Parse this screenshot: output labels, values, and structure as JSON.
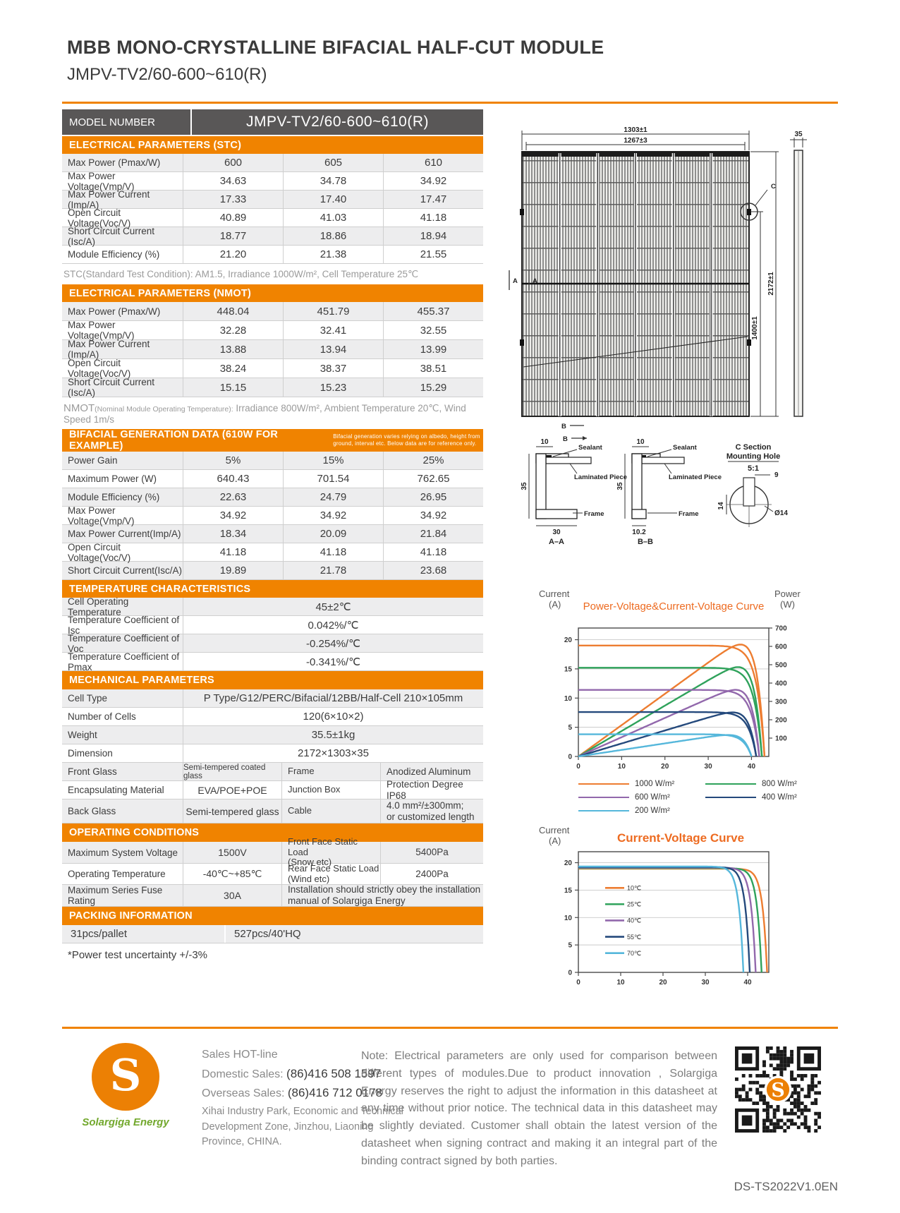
{
  "page": {
    "title": "MBB MONO-CRYSTALLINE BIFACIAL HALF-CUT MODULE",
    "subtitle": "JMPV-TV2/60-600~610(R)",
    "doc_code": "DS-TS2022V1.0EN"
  },
  "model_row": {
    "label": "MODEL NUMBER",
    "value": "JMPV-TV2/60-600~610(R)"
  },
  "stc": {
    "header": "ELECTRICAL PARAMETERS  (STC)",
    "rows": [
      {
        "label": "Max Power (Pmax/W)",
        "values": [
          "600",
          "605",
          "610"
        ]
      },
      {
        "label": "Max Power Voltage(Vmp/V)",
        "values": [
          "34.63",
          "34.78",
          "34.92"
        ]
      },
      {
        "label": "Max Power Current (Imp/A)",
        "values": [
          "17.33",
          "17.40",
          "17.47"
        ]
      },
      {
        "label": "Open Circuit Voltage(Voc/V)",
        "values": [
          "40.89",
          "41.03",
          "41.18"
        ]
      },
      {
        "label": "Short Circuit Current (Isc/A)",
        "values": [
          "18.77",
          "18.86",
          "18.94"
        ]
      },
      {
        "label": "Module Efficiency (%)",
        "values": [
          "21.20",
          "21.38",
          "21.55"
        ]
      }
    ],
    "footnote": "STC(Standard Test Condition): AM1.5, Irradiance 1000W/m², Cell Temperature 25℃"
  },
  "nmot": {
    "header": "ELECTRICAL PARAMETERS  (NMOT)",
    "rows": [
      {
        "label": "Max Power (Pmax/W)",
        "values": [
          "448.04",
          "451.79",
          "455.37"
        ]
      },
      {
        "label": "Max Power Voltage(Vmp/V)",
        "values": [
          "32.28",
          "32.41",
          "32.55"
        ]
      },
      {
        "label": "Max Power Current (Imp/A)",
        "values": [
          "13.88",
          "13.94",
          "13.99"
        ]
      },
      {
        "label": "Open Circuit Voltage(Voc/V)",
        "values": [
          "38.24",
          "38.37",
          "38.51"
        ]
      },
      {
        "label": "Short Circuit Current (Isc/A)",
        "values": [
          "15.15",
          "15.23",
          "15.29"
        ]
      }
    ],
    "footnote_prefix": "NMOT",
    "footnote_small": "(Nominal Module Operating Temperature):",
    "footnote_rest": " Irradiance 800W/m², Ambient Temperature 20℃, Wind Speed 1m/s"
  },
  "bifacial": {
    "header": "BIFACIAL GENERATION DATA (610W FOR EXAMPLE)",
    "header_note": "Bifacial generation varies relying on albedo, height from ground, interval etc. Below data are for reference only.",
    "rows": [
      {
        "label": "Power Gain",
        "values": [
          "5%",
          "15%",
          "25%"
        ]
      },
      {
        "label": "Maximum Power (W)",
        "values": [
          "640.43",
          "701.54",
          "762.65"
        ]
      },
      {
        "label": "Module Efficiency (%)",
        "values": [
          "22.63",
          "24.79",
          "26.95"
        ]
      },
      {
        "label": "Max Power Voltage(Vmp/V)",
        "values": [
          "34.92",
          "34.92",
          "34.92"
        ]
      },
      {
        "label": "Max Power Current(Imp/A)",
        "values": [
          "18.34",
          "20.09",
          "21.84"
        ]
      },
      {
        "label": "Open Circuit Voltage(Voc/V)",
        "values": [
          "41.18",
          "41.18",
          "41.18"
        ]
      },
      {
        "label": "Short Circuit Current(Isc/A)",
        "values": [
          "19.89",
          "21.78",
          "23.68"
        ]
      }
    ]
  },
  "temperature": {
    "header": "TEMPERATURE CHARACTERISTICS",
    "rows": [
      {
        "label": "Cell Operating Temperature",
        "value": "45±2℃"
      },
      {
        "label": "Temperature Coefficient of Isc",
        "value": "0.042%/℃"
      },
      {
        "label": "Temperature Coefficient of Voc",
        "value": "-0.254%/℃"
      },
      {
        "label": "Temperature Coefficient of Pmax",
        "value": "-0.341%/℃"
      }
    ]
  },
  "mechanical": {
    "header": "MECHANICAL PARAMETERS",
    "full_rows": [
      {
        "label": "Cell Type",
        "value": "P Type/G12/PERC/Bifacial/12BB/Half-Cell 210×105mm"
      },
      {
        "label": "Number of Cells",
        "value": "120(6×10×2)"
      },
      {
        "label": "Weight",
        "value": "35.5±1kg"
      },
      {
        "label": "Dimension",
        "value": "2172×1303×35"
      }
    ],
    "split_rows": [
      {
        "label_a": "Front Glass",
        "value_a": "Semi-tempered coated glass",
        "label_b": "Frame",
        "value_b": "Anodized Aluminum"
      },
      {
        "label_a": "Encapsulating Material",
        "value_a": "EVA/POE+POE",
        "label_b": "Junction Box",
        "value_b": "Protection Degree IP68"
      },
      {
        "label_a": "Back Glass",
        "value_a": "Semi-tempered glass",
        "label_b": "Cable",
        "value_b": "4.0 mm²/±300mm;\nor customized length"
      }
    ]
  },
  "operating": {
    "header": "OPERATING CONDITIONS",
    "rows": [
      {
        "label_a": "Maximum System Voltage",
        "value_a": "1500V",
        "label_b": "Front Face Static Load\n(Snow etc)",
        "value_b": "5400Pa"
      },
      {
        "label_a": "Operating Temperature",
        "value_a": "-40℃~+85℃",
        "label_b": "Rear Face Static Load\n(Wind etc)",
        "value_b": "2400Pa"
      }
    ],
    "last_row": {
      "label": "Maximum Series Fuse Rating",
      "value": "30A",
      "note": "Installation should strictly obey the installation manual of Solargiga Energy"
    }
  },
  "packing": {
    "header": "PACKING INFORMATION",
    "label": "31pcs/pallet",
    "value": "527pcs/40'HQ"
  },
  "uncertainty_note": "*Power test uncertainty  +/-3%",
  "drawing": {
    "dim_width_outer": "1303±1",
    "dim_width_inner": "1267±3",
    "dim_thickness": "35",
    "dim_hole_span": "1400±1",
    "dim_height": "2172±1",
    "label_a1": "A",
    "label_a2": "A",
    "label_b1": "B",
    "label_b2": "B",
    "label_c": "C",
    "section_a": {
      "title": "A–A",
      "dim_top": "10",
      "dim_left": "35",
      "dim_bottom": "30",
      "sealant": "Sealant",
      "laminated": "Laminated Piece",
      "frame": "Frame"
    },
    "section_b": {
      "title": "B–B",
      "dim_top": "10",
      "dim_left": "35",
      "dim_bottom": "10.2",
      "sealant": "Sealant",
      "laminated": "Laminated Piece",
      "frame": "Frame"
    },
    "section_c": {
      "title_line1": "C Section",
      "title_line2": "Mounting Hole",
      "scale": "5:1",
      "dim_w": "9",
      "dim_h": "14",
      "dim_d": "Ø14"
    }
  },
  "chart_data": [
    {
      "type": "line",
      "title": "Power-Voltage&Current-Voltage Curve",
      "left_axis": {
        "label": "Current",
        "unit": "(A)",
        "ticks": [
          0,
          5,
          10,
          15,
          20
        ],
        "range": [
          0,
          22
        ]
      },
      "right_axis": {
        "label": "Power",
        "unit": "(W)",
        "ticks": [
          100,
          200,
          300,
          400,
          500,
          600,
          700
        ],
        "range": [
          0,
          700
        ]
      },
      "x_axis": {
        "ticks": [
          0,
          10,
          20,
          30,
          40
        ],
        "range": [
          0,
          44
        ]
      },
      "grid": true,
      "legend_position": "below",
      "series": [
        {
          "name": "1000 W/m²",
          "color": "#ED7D31",
          "isc": 19.0,
          "voc": 43.0,
          "pmax": 610
        },
        {
          "name": "800 W/m²",
          "color": "#2FA25B",
          "isc": 15.2,
          "voc": 42.4,
          "pmax": 487
        },
        {
          "name": "600 W/m²",
          "color": "#9268AC",
          "isc": 11.4,
          "voc": 41.8,
          "pmax": 363
        },
        {
          "name": "400 W/m²",
          "color": "#24497C",
          "isc": 7.6,
          "voc": 41.1,
          "pmax": 240
        },
        {
          "name": "200 W/m²",
          "color": "#55B7DB",
          "isc": 3.8,
          "voc": 40.0,
          "pmax": 117
        }
      ]
    },
    {
      "type": "line",
      "title": "Current-Voltage Curve",
      "left_axis": {
        "label": "Current",
        "unit": "(A)",
        "ticks": [
          0,
          5,
          10,
          15,
          20
        ],
        "range": [
          0,
          22
        ]
      },
      "x_axis": {
        "ticks": [
          0,
          10,
          20,
          30,
          40
        ],
        "range": [
          0,
          45
        ]
      },
      "grid": true,
      "legend_position": "inside",
      "series": [
        {
          "name": "10℃",
          "color": "#ED7D31",
          "isc": 18.9,
          "voc": 44.6
        },
        {
          "name": "25℃",
          "color": "#2FA25B",
          "isc": 19.0,
          "voc": 43.3
        },
        {
          "name": "40℃",
          "color": "#9268AC",
          "isc": 19.1,
          "voc": 41.9
        },
        {
          "name": "55℃",
          "color": "#24497C",
          "isc": 19.2,
          "voc": 40.5
        },
        {
          "name": "70℃",
          "color": "#55B7DB",
          "isc": 19.3,
          "voc": 39.0
        }
      ]
    }
  ],
  "footer": {
    "hotline_title": "Sales HOT-line",
    "domestic_label": "Domestic Sales:",
    "domestic_value": "(86)416 508 1597",
    "overseas_label": "Overseas Sales:",
    "overseas_value": "(86)416 712 0178",
    "address": "Xihai Industry Park, Economic and Technical Development Zone, Jinzhou, Liaoning Province, CHINA.",
    "brand": "Solargiga Energy",
    "logo_letter": "S",
    "note": "Note:  Electrical parameters are only used for comparison between different types of modules.Due to product innovation , Solargiga Energy reserves the right to adjust the information in this datasheet at any time without prior notice. The technical data in this datasheet may be slightly deviated. Customer shall obtain the latest version of the datasheet when signing contract and making it an integral part of the binding contract signed by both parties."
  },
  "colors": {
    "accent_orange": "#F08300",
    "header_gray": "#595757",
    "chart_title_orange": "#ED6B21",
    "brand_green": "#72A82D"
  }
}
